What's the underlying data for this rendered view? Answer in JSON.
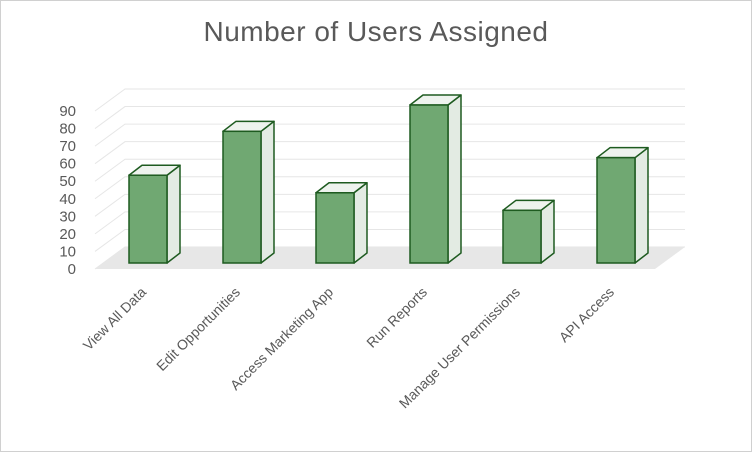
{
  "chart_data": {
    "type": "bar",
    "title": "Number of Users Assigned",
    "categories": [
      "View All Data",
      "Edit Opportunities",
      "Access Marketing App",
      "Run Reports",
      "Manage User Permissions",
      "API Access"
    ],
    "values": [
      50,
      75,
      40,
      90,
      30,
      60
    ],
    "ylim": [
      0,
      90
    ],
    "yticks": [
      "0",
      "10",
      "20",
      "30",
      "40",
      "50",
      "60",
      "70",
      "80",
      "90"
    ],
    "grid": true,
    "style": "3d-column",
    "colors": {
      "bar_front": "#70a872",
      "bar_side": "#e3ebe3",
      "bar_top": "#eef3ee",
      "bar_edge": "#1e5b20",
      "grid": "#e6e6e6",
      "floor": "#e7e7e7"
    }
  }
}
